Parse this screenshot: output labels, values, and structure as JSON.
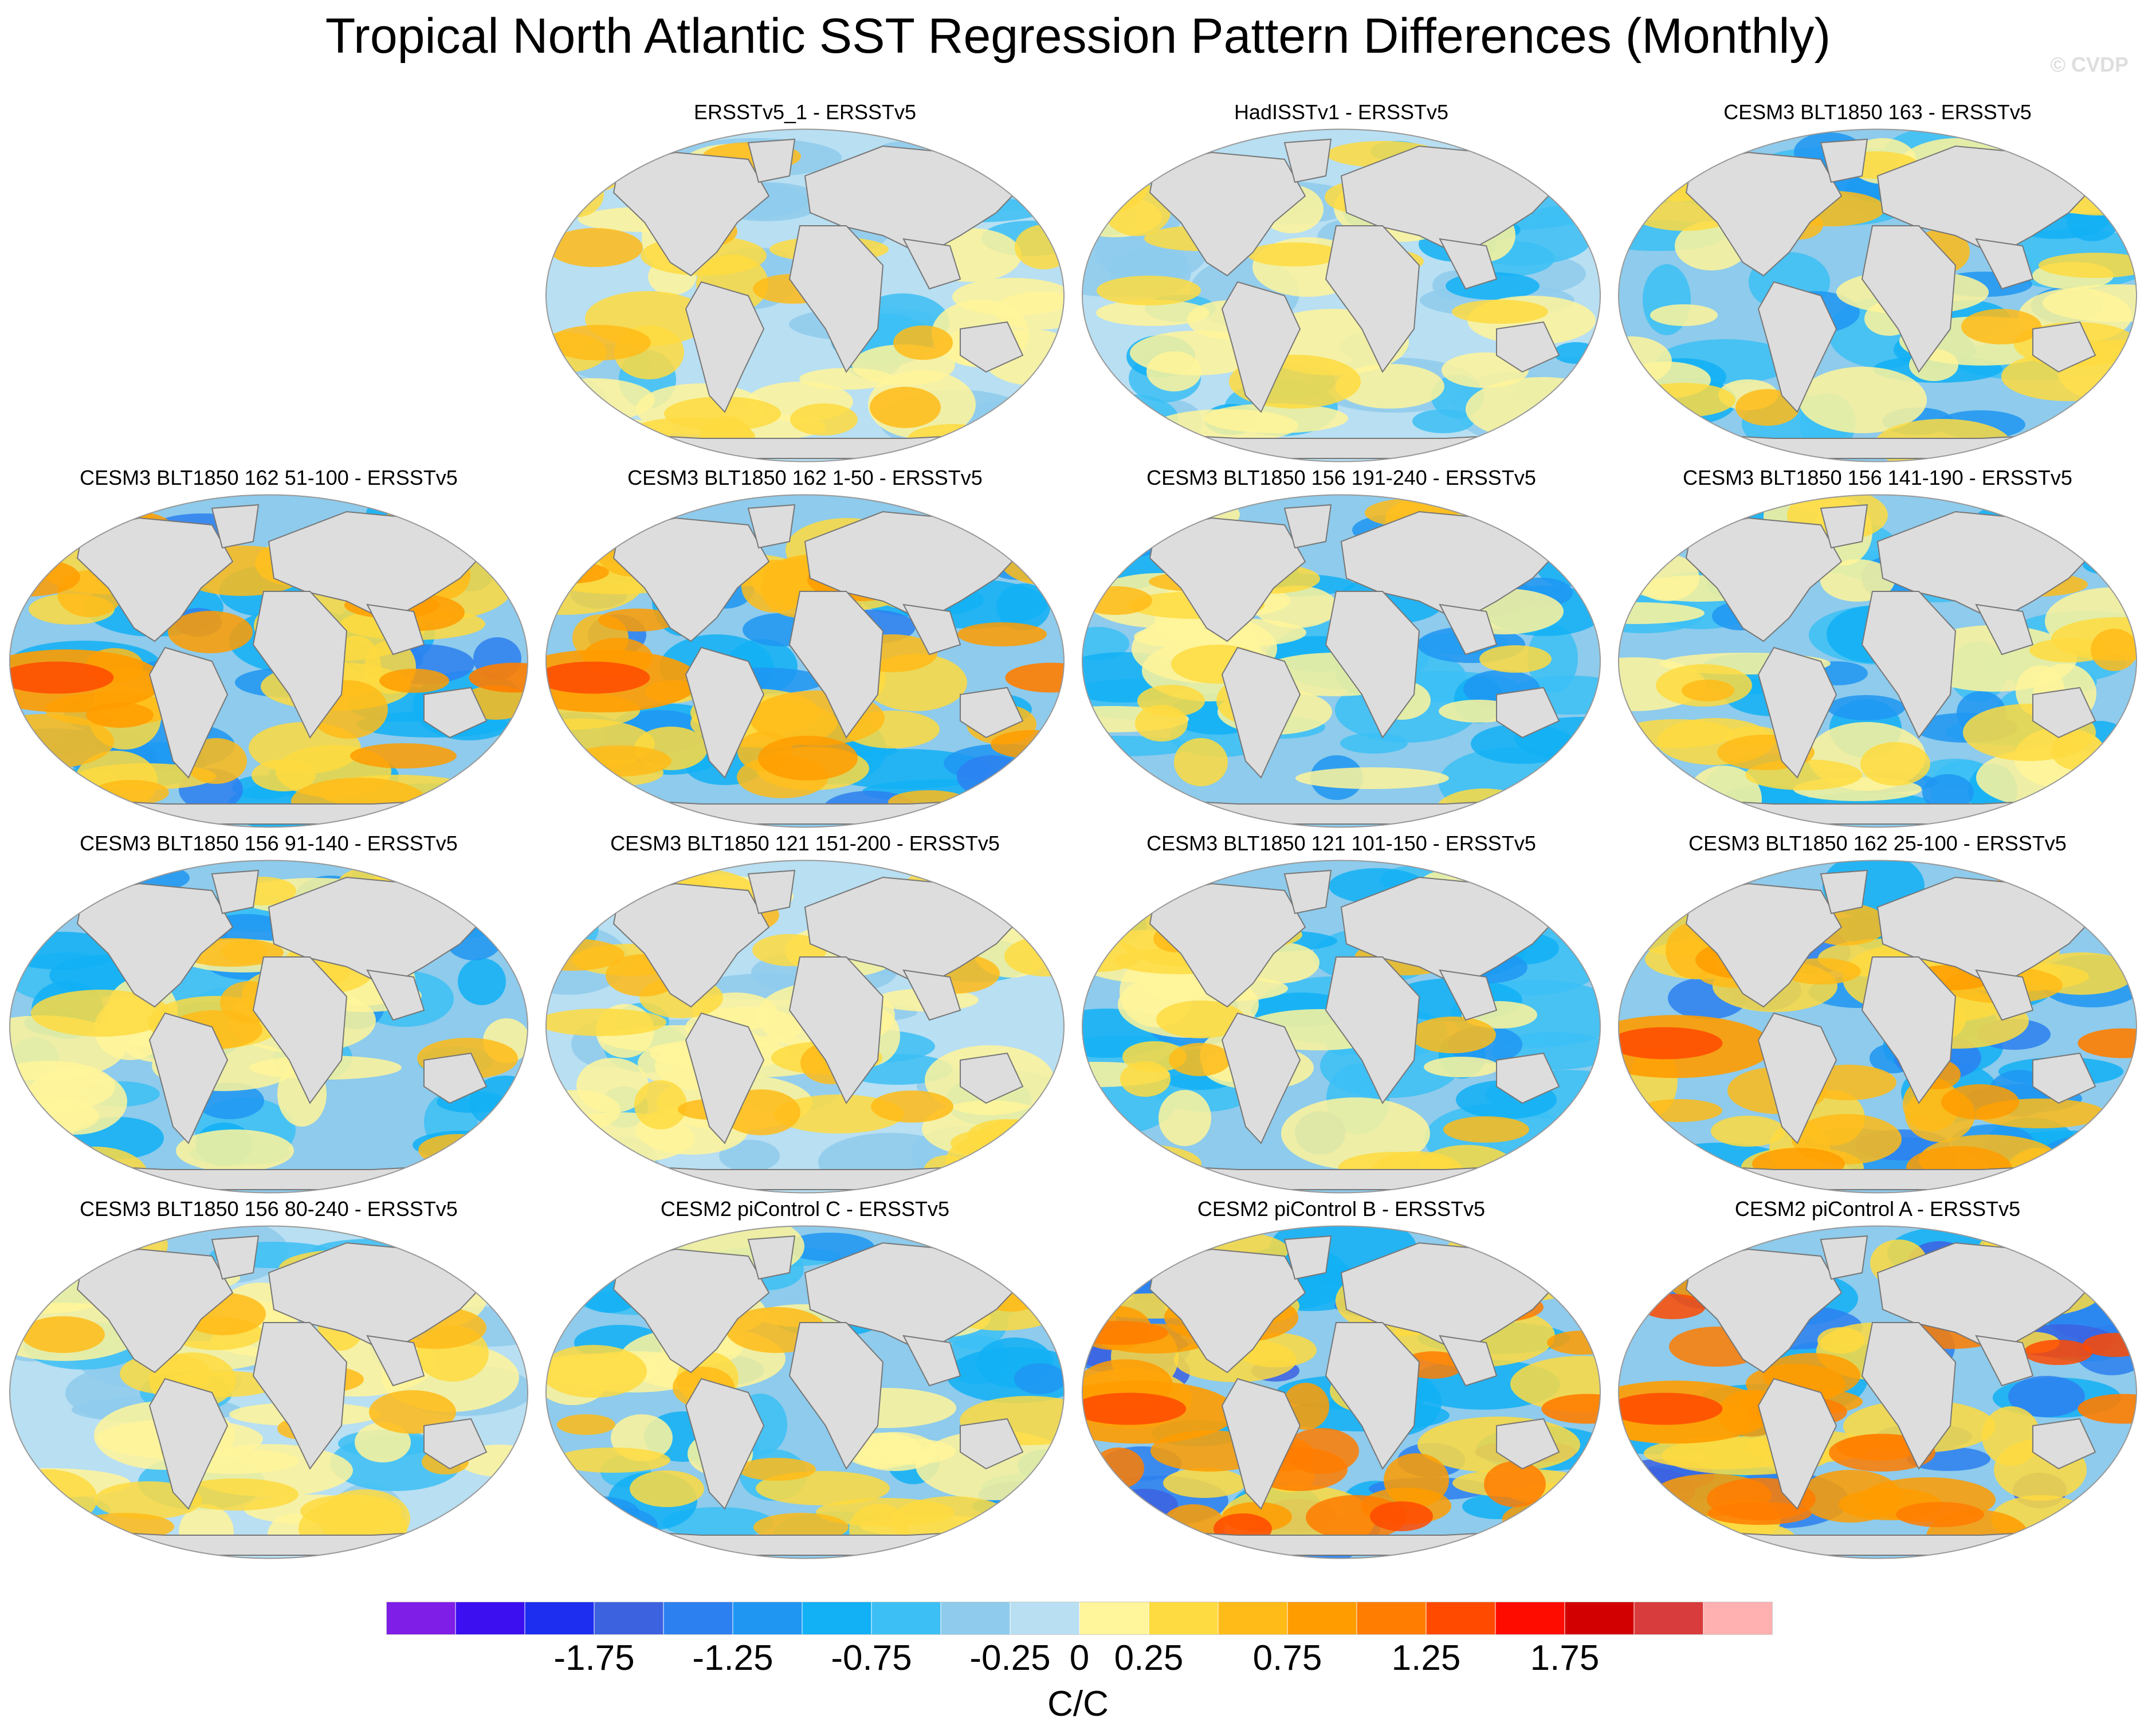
{
  "title": "Tropical North Atlantic SST Regression Pattern Differences (Monthly)",
  "watermark": "© CVDP",
  "panels": [
    {
      "label": "ERSSTv5_1 - ERSSTv5",
      "row": 0,
      "col": 1,
      "pattern": "weak-warm"
    },
    {
      "label": "HadISSTv1 - ERSSTv5",
      "row": 0,
      "col": 2,
      "pattern": "weak-mixed"
    },
    {
      "label": "CESM3 BLT1850 163 - ERSSTv5",
      "row": 0,
      "col": 3,
      "pattern": "mixed"
    },
    {
      "label": "CESM3 BLT1850 162 51-100 - ERSSTv5",
      "row": 1,
      "col": 0,
      "pattern": "east-pacific-warm"
    },
    {
      "label": "CESM3 BLT1850 162 1-50 - ERSSTv5",
      "row": 1,
      "col": 1,
      "pattern": "east-pacific-warm"
    },
    {
      "label": "CESM3 BLT1850 156 191-240 - ERSSTv5",
      "row": 1,
      "col": 2,
      "pattern": "mixed"
    },
    {
      "label": "CESM3 BLT1850 156 141-190 - ERSSTv5",
      "row": 1,
      "col": 3,
      "pattern": "mixed"
    },
    {
      "label": "CESM3 BLT1850 156 91-140 - ERSSTv5",
      "row": 2,
      "col": 0,
      "pattern": "mixed"
    },
    {
      "label": "CESM3 BLT1850 121 151-200 - ERSSTv5",
      "row": 2,
      "col": 1,
      "pattern": "weak-warm"
    },
    {
      "label": "CESM3 BLT1850 121 101-150 - ERSSTv5",
      "row": 2,
      "col": 2,
      "pattern": "mixed"
    },
    {
      "label": "CESM3 BLT1850 162 25-100 - ERSSTv5",
      "row": 2,
      "col": 3,
      "pattern": "east-pacific-warm"
    },
    {
      "label": "CESM3 BLT1850 156 80-240 - ERSSTv5",
      "row": 3,
      "col": 0,
      "pattern": "weak-warm"
    },
    {
      "label": "CESM2 piControl C - ERSSTv5",
      "row": 3,
      "col": 1,
      "pattern": "mixed"
    },
    {
      "label": "CESM2 piControl B - ERSSTv5",
      "row": 3,
      "col": 2,
      "pattern": "strong-pacific"
    },
    {
      "label": "CESM2 piControl A - ERSSTv5",
      "row": 3,
      "col": 3,
      "pattern": "strong-pacific"
    }
  ],
  "colorbar": {
    "colors": [
      "#7f1ee6",
      "#3b0ff0",
      "#1d2ef0",
      "#3d62e0",
      "#2d80f0",
      "#1e96f2",
      "#12b0f5",
      "#3cbff5",
      "#8ecbec",
      "#b8dff2",
      "#fff59a",
      "#fedb40",
      "#ffbb18",
      "#ff9c00",
      "#ff7d00",
      "#ff4a00",
      "#ff0c00",
      "#d20000",
      "#d83c3c",
      "#ffb0b0"
    ],
    "tick_labels": [
      "-1.75",
      "-1.25",
      "-0.75",
      "-0.25",
      "0",
      "0.25",
      "0.75",
      "1.25",
      "1.75"
    ],
    "units": "C/C"
  },
  "land_color": "#dddddd",
  "coast_color": "#777777"
}
